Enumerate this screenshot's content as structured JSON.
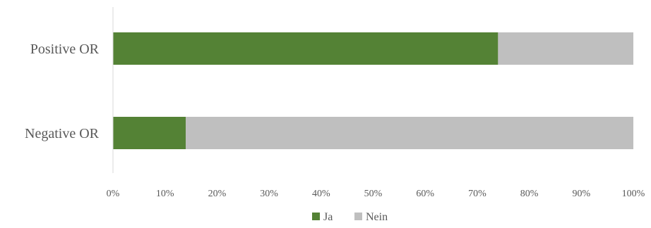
{
  "chart_data": {
    "type": "bar",
    "orientation": "horizontal",
    "stacked": true,
    "categories": [
      "Positive OR",
      "Negative OR"
    ],
    "series": [
      {
        "name": "Ja",
        "color": "#548235",
        "values": [
          74,
          14
        ]
      },
      {
        "name": "Nein",
        "color": "#bfbfbf",
        "values": [
          26,
          86
        ]
      }
    ],
    "xlim": [
      0,
      100
    ],
    "xticks": [
      "0%",
      "10%",
      "20%",
      "30%",
      "40%",
      "50%",
      "60%",
      "70%",
      "80%",
      "90%",
      "100%"
    ],
    "grid": false,
    "legend_position": "bottom-center",
    "axis_color": "#d9d9d9"
  }
}
